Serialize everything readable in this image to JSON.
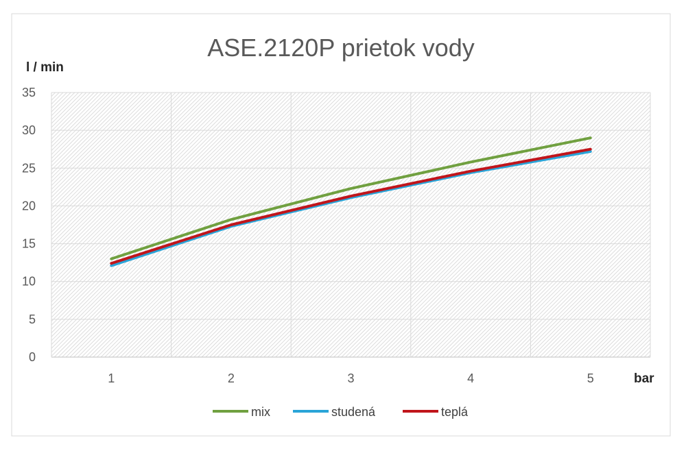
{
  "chart_data": {
    "type": "line",
    "title": "ASE.2120P prietok vody",
    "ylabel": "l / min",
    "xlabel": "bar",
    "categories": [
      "1",
      "2",
      "3",
      "4",
      "5"
    ],
    "ylim": [
      0,
      35
    ],
    "yticks": [
      "0",
      "5",
      "10",
      "15",
      "20",
      "25",
      "30",
      "35"
    ],
    "grid": true,
    "legend_position": "bottom",
    "series": [
      {
        "name": "mix",
        "color": "#70a040",
        "values": [
          13.0,
          18.2,
          22.3,
          25.8,
          29.0
        ]
      },
      {
        "name": "studená",
        "color": "#2aa4d8",
        "values": [
          12.1,
          17.3,
          21.1,
          24.4,
          27.2
        ]
      },
      {
        "name": "teplá",
        "color": "#c0151b",
        "values": [
          12.4,
          17.5,
          21.3,
          24.6,
          27.5
        ]
      }
    ]
  }
}
